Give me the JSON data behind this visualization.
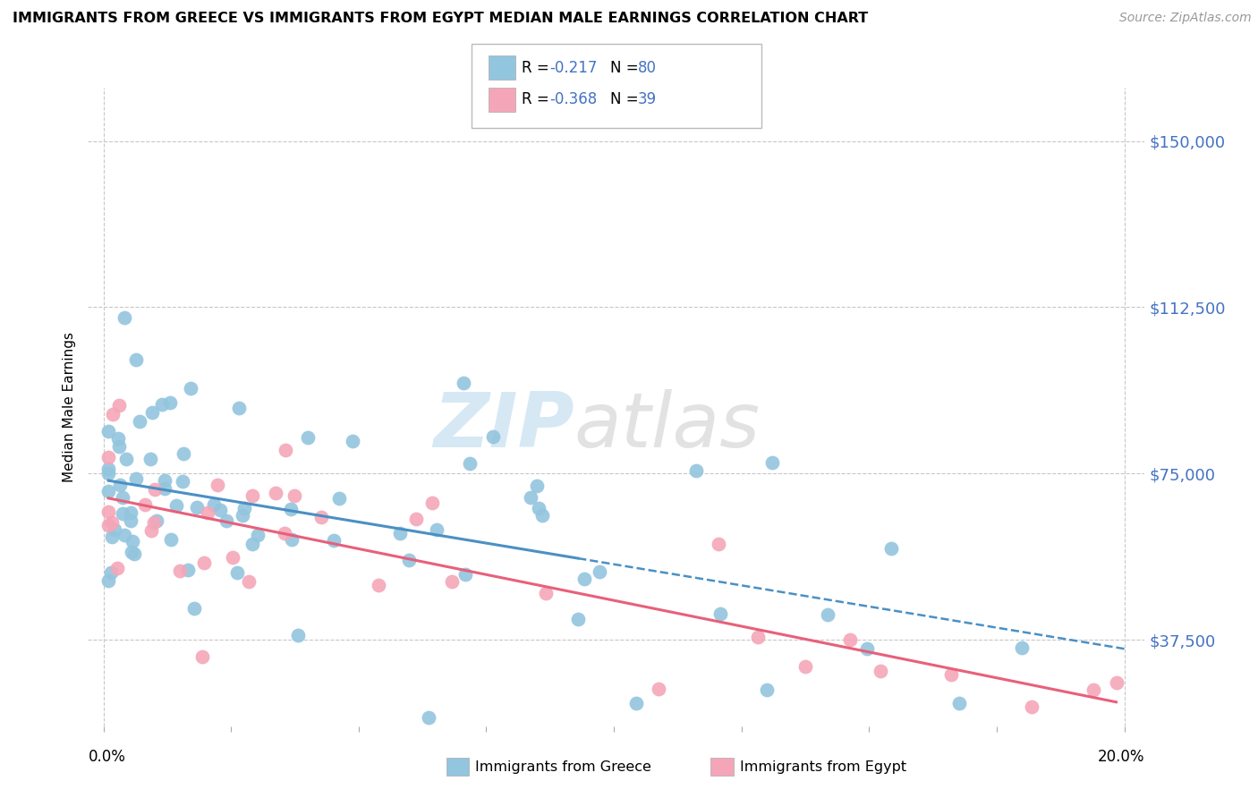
{
  "title": "IMMIGRANTS FROM GREECE VS IMMIGRANTS FROM EGYPT MEDIAN MALE EARNINGS CORRELATION CHART",
  "source": "Source: ZipAtlas.com",
  "ylabel": "Median Male Earnings",
  "ytick_labels": [
    "$37,500",
    "$75,000",
    "$112,500",
    "$150,000"
  ],
  "ytick_values": [
    37500,
    75000,
    112500,
    150000
  ],
  "ymin": 18000,
  "ymax": 162000,
  "xmin": -0.003,
  "xmax": 0.204,
  "greece_color": "#92c5de",
  "egypt_color": "#f4a6b8",
  "greece_line_color": "#4a90c4",
  "egypt_line_color": "#e8607a",
  "greece_R": -0.217,
  "greece_N": 80,
  "egypt_R": -0.368,
  "egypt_N": 39,
  "grid_color": "#c8c8c8",
  "right_label_color": "#4472c4",
  "watermark_zip_color": "#c5dff0",
  "watermark_atlas_color": "#d0d0d0"
}
